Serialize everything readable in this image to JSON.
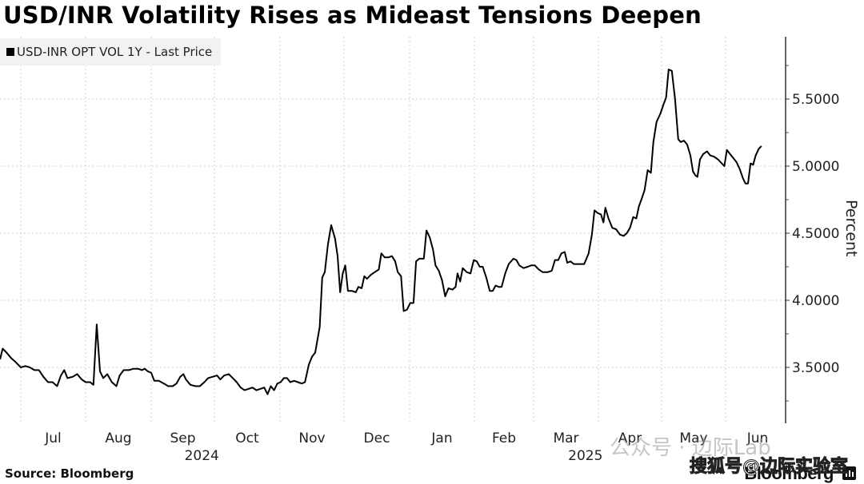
{
  "chart_data": {
    "type": "line",
    "title": "USD/INR Volatility Rises as Mideast Tensions Deepen",
    "legend": [
      {
        "label": "USD-INR OPT VOL 1Y - Last Price",
        "color": "#000000"
      }
    ],
    "legend_placement": "top-left",
    "ylabel": "Percent",
    "xlabel": "",
    "y_axis_side": "right",
    "ylim": [
      3.1,
      5.95
    ],
    "yticks": [
      3.5,
      4.0,
      4.5,
      5.0,
      5.5
    ],
    "ytick_labels": [
      "3.5000",
      "4.0000",
      "4.5000",
      "5.0000",
      "5.5000"
    ],
    "x_month_labels": [
      "Jul",
      "Aug",
      "Sep",
      "Oct",
      "Nov",
      "Dec",
      "Jan",
      "Feb",
      "Mar",
      "Apr",
      "May",
      "Jun"
    ],
    "x_year_labels": [
      {
        "label": "2024",
        "under": "Sep"
      },
      {
        "label": "2025",
        "under": "Mar"
      }
    ],
    "x_range_months": [
      -0.3,
      11.55
    ],
    "grid": true,
    "series": [
      {
        "name": "USD-INR OPT VOL 1Y - Last Price",
        "color": "#000000",
        "points": [
          [
            -0.32,
            3.56
          ],
          [
            -0.28,
            3.64
          ],
          [
            -0.22,
            3.61
          ],
          [
            -0.15,
            3.57
          ],
          [
            -0.08,
            3.54
          ],
          [
            0.0,
            3.5
          ],
          [
            0.07,
            3.51
          ],
          [
            0.14,
            3.5
          ],
          [
            0.21,
            3.48
          ],
          [
            0.28,
            3.48
          ],
          [
            0.35,
            3.43
          ],
          [
            0.42,
            3.39
          ],
          [
            0.49,
            3.39
          ],
          [
            0.56,
            3.36
          ],
          [
            0.62,
            3.44
          ],
          [
            0.67,
            3.48
          ],
          [
            0.72,
            3.42
          ],
          [
            0.8,
            3.43
          ],
          [
            0.87,
            3.45
          ],
          [
            0.94,
            3.41
          ],
          [
            1.0,
            3.39
          ],
          [
            1.07,
            3.39
          ],
          [
            1.12,
            3.37
          ],
          [
            1.17,
            3.82
          ],
          [
            1.22,
            3.47
          ],
          [
            1.27,
            3.42
          ],
          [
            1.33,
            3.45
          ],
          [
            1.4,
            3.39
          ],
          [
            1.47,
            3.36
          ],
          [
            1.52,
            3.44
          ],
          [
            1.58,
            3.48
          ],
          [
            1.66,
            3.48
          ],
          [
            1.73,
            3.49
          ],
          [
            1.8,
            3.49
          ],
          [
            1.86,
            3.48
          ],
          [
            1.9,
            3.49
          ],
          [
            1.95,
            3.47
          ],
          [
            2.0,
            3.46
          ],
          [
            2.05,
            3.4
          ],
          [
            2.12,
            3.4
          ],
          [
            2.2,
            3.38
          ],
          [
            2.27,
            3.36
          ],
          [
            2.34,
            3.36
          ],
          [
            2.4,
            3.38
          ],
          [
            2.46,
            3.43
          ],
          [
            2.51,
            3.45
          ],
          [
            2.55,
            3.41
          ],
          [
            2.62,
            3.37
          ],
          [
            2.7,
            3.36
          ],
          [
            2.77,
            3.36
          ],
          [
            2.84,
            3.39
          ],
          [
            2.9,
            3.42
          ],
          [
            2.97,
            3.43
          ],
          [
            3.04,
            3.44
          ],
          [
            3.09,
            3.41
          ],
          [
            3.15,
            3.44
          ],
          [
            3.22,
            3.45
          ],
          [
            3.28,
            3.42
          ],
          [
            3.34,
            3.39
          ],
          [
            3.4,
            3.35
          ],
          [
            3.46,
            3.33
          ],
          [
            3.52,
            3.34
          ],
          [
            3.58,
            3.35
          ],
          [
            3.64,
            3.33
          ],
          [
            3.7,
            3.34
          ],
          [
            3.76,
            3.35
          ],
          [
            3.81,
            3.3
          ],
          [
            3.86,
            3.36
          ],
          [
            3.91,
            3.33
          ],
          [
            3.96,
            3.38
          ],
          [
            4.01,
            3.39
          ],
          [
            4.06,
            3.42
          ],
          [
            4.11,
            3.42
          ],
          [
            4.16,
            3.39
          ],
          [
            4.22,
            3.4
          ],
          [
            4.28,
            3.39
          ],
          [
            4.34,
            3.38
          ],
          [
            4.39,
            3.39
          ],
          [
            4.45,
            3.52
          ],
          [
            4.5,
            3.58
          ],
          [
            4.55,
            3.61
          ],
          [
            4.62,
            3.8
          ],
          [
            4.66,
            4.17
          ],
          [
            4.7,
            4.21
          ],
          [
            4.75,
            4.42
          ],
          [
            4.8,
            4.56
          ],
          [
            4.86,
            4.46
          ],
          [
            4.9,
            4.33
          ],
          [
            4.94,
            4.06
          ],
          [
            4.98,
            4.2
          ],
          [
            5.02,
            4.26
          ],
          [
            5.06,
            4.07
          ],
          [
            5.12,
            4.07
          ],
          [
            5.18,
            4.06
          ],
          [
            5.22,
            4.1
          ],
          [
            5.27,
            4.09
          ],
          [
            5.31,
            4.18
          ],
          [
            5.35,
            4.16
          ],
          [
            5.41,
            4.19
          ],
          [
            5.47,
            4.21
          ],
          [
            5.53,
            4.23
          ],
          [
            5.57,
            4.35
          ],
          [
            5.62,
            4.32
          ],
          [
            5.68,
            4.32
          ],
          [
            5.73,
            4.33
          ],
          [
            5.78,
            4.29
          ],
          [
            5.82,
            4.21
          ],
          [
            5.87,
            4.18
          ],
          [
            5.91,
            3.92
          ],
          [
            5.96,
            3.93
          ],
          [
            6.01,
            3.98
          ],
          [
            6.06,
            3.98
          ],
          [
            6.1,
            4.29
          ],
          [
            6.15,
            4.31
          ],
          [
            6.22,
            4.31
          ],
          [
            6.26,
            4.52
          ],
          [
            6.31,
            4.47
          ],
          [
            6.36,
            4.38
          ],
          [
            6.4,
            4.26
          ],
          [
            6.45,
            4.22
          ],
          [
            6.5,
            4.15
          ],
          [
            6.55,
            4.03
          ],
          [
            6.6,
            4.09
          ],
          [
            6.66,
            4.08
          ],
          [
            6.71,
            4.1
          ],
          [
            6.74,
            4.2
          ],
          [
            6.78,
            4.14
          ],
          [
            6.82,
            4.24
          ],
          [
            6.88,
            4.21
          ],
          [
            6.94,
            4.2
          ],
          [
            6.99,
            4.3
          ],
          [
            7.04,
            4.29
          ],
          [
            7.09,
            4.25
          ],
          [
            7.14,
            4.25
          ],
          [
            7.2,
            4.17
          ],
          [
            7.26,
            4.07
          ],
          [
            7.31,
            4.07
          ],
          [
            7.36,
            4.11
          ],
          [
            7.41,
            4.1
          ],
          [
            7.46,
            4.1
          ],
          [
            7.52,
            4.2
          ],
          [
            7.58,
            4.27
          ],
          [
            7.66,
            4.31
          ],
          [
            7.71,
            4.3
          ],
          [
            7.76,
            4.26
          ],
          [
            7.83,
            4.24
          ],
          [
            7.9,
            4.25
          ],
          [
            7.96,
            4.26
          ],
          [
            8.02,
            4.26
          ],
          [
            8.08,
            4.23
          ],
          [
            8.14,
            4.21
          ],
          [
            8.22,
            4.21
          ],
          [
            8.28,
            4.22
          ],
          [
            8.33,
            4.3
          ],
          [
            8.38,
            4.3
          ],
          [
            8.43,
            4.35
          ],
          [
            8.48,
            4.36
          ],
          [
            8.52,
            4.28
          ],
          [
            8.57,
            4.29
          ],
          [
            8.62,
            4.27
          ],
          [
            8.7,
            4.27
          ],
          [
            8.78,
            4.27
          ],
          [
            8.85,
            4.35
          ],
          [
            8.9,
            4.49
          ],
          [
            8.94,
            4.67
          ],
          [
            8.99,
            4.65
          ],
          [
            9.04,
            4.64
          ],
          [
            9.08,
            4.58
          ],
          [
            9.11,
            4.69
          ],
          [
            9.16,
            4.61
          ],
          [
            9.22,
            4.54
          ],
          [
            9.28,
            4.53
          ],
          [
            9.34,
            4.49
          ],
          [
            9.4,
            4.48
          ],
          [
            9.45,
            4.5
          ],
          [
            9.5,
            4.54
          ],
          [
            9.55,
            4.62
          ],
          [
            9.6,
            4.61
          ],
          [
            9.64,
            4.7
          ],
          [
            9.68,
            4.75
          ],
          [
            9.73,
            4.82
          ],
          [
            9.78,
            4.97
          ],
          [
            9.83,
            4.95
          ],
          [
            9.87,
            5.18
          ],
          [
            9.92,
            5.33
          ],
          [
            9.98,
            5.39
          ],
          [
            10.03,
            5.46
          ],
          [
            10.07,
            5.51
          ],
          [
            10.11,
            5.72
          ],
          [
            10.16,
            5.71
          ],
          [
            10.21,
            5.5
          ],
          [
            10.26,
            5.2
          ],
          [
            10.3,
            5.18
          ],
          [
            10.35,
            5.19
          ],
          [
            10.4,
            5.16
          ],
          [
            10.45,
            5.08
          ],
          [
            10.49,
            4.96
          ],
          [
            10.53,
            4.93
          ],
          [
            10.56,
            4.92
          ],
          [
            10.6,
            5.05
          ],
          [
            10.65,
            5.09
          ],
          [
            10.71,
            5.11
          ],
          [
            10.76,
            5.08
          ],
          [
            10.82,
            5.07
          ],
          [
            10.88,
            5.05
          ],
          [
            10.94,
            5.02
          ],
          [
            10.98,
            5.0
          ],
          [
            11.02,
            5.12
          ],
          [
            11.07,
            5.09
          ],
          [
            11.12,
            5.06
          ],
          [
            11.17,
            5.03
          ],
          [
            11.22,
            4.98
          ],
          [
            11.27,
            4.91
          ],
          [
            11.31,
            4.87
          ],
          [
            11.35,
            4.87
          ],
          [
            11.39,
            5.02
          ],
          [
            11.43,
            5.01
          ],
          [
            11.47,
            5.08
          ],
          [
            11.52,
            5.13
          ],
          [
            11.56,
            5.15
          ]
        ]
      }
    ]
  },
  "footer": {
    "source": "Source: Bloomberg",
    "logo": "Bloomberg"
  },
  "watermarks": {
    "wechat": "公众号 · 边际Lab",
    "sohu": "搜狐号@边际实验室"
  }
}
